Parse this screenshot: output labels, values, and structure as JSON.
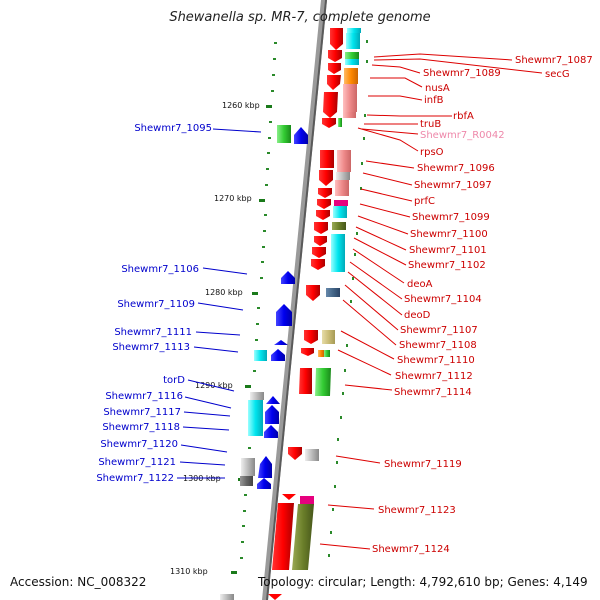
{
  "header": {
    "title": "Shewanella sp. MR-7, complete genome"
  },
  "footer": {
    "accession": "Accession: NC_008322",
    "summary": "Topology: circular; Length: 4,792,610 bp; Genes: 4,149"
  },
  "scale_labels": [
    "1260 kbp",
    "1270 kbp",
    "1280 kbp",
    "1290 kbp",
    "1300 kbp",
    "1310 kbp"
  ],
  "colors": {
    "left_strand_labels": "#0000cc",
    "right_strand_labels": "#cc0000",
    "rna_label": "#ee88aa",
    "backbone": "#888888"
  },
  "left_labels": [
    "Shewmr7_1095",
    "Shewmr7_1106",
    "Shewmr7_1109",
    "Shewmr7_1111",
    "Shewmr7_1113",
    "torD",
    "Shewmr7_1116",
    "Shewmr7_1117",
    "Shewmr7_1118",
    "Shewmr7_1120",
    "Shewmr7_1121",
    "Shewmr7_1122"
  ],
  "right_labels": [
    "Shewmr7_1087",
    "secG",
    "Shewmr7_1089",
    "nusA",
    "infB",
    "rbfA",
    "truB",
    "Shewmr7_R0042",
    "rpsO",
    "Shewmr7_1096",
    "Shewmr7_1097",
    "prfC",
    "Shewmr7_1099",
    "Shewmr7_1100",
    "Shewmr7_1101",
    "Shewmr7_1102",
    "deoA",
    "Shewmr7_1104",
    "deoD",
    "Shewmr7_1107",
    "Shewmr7_1108",
    "Shewmr7_1110",
    "Shewmr7_1112",
    "Shewmr7_1114",
    "Shewmr7_1119",
    "Shewmr7_1123",
    "Shewmr7_1124"
  ]
}
